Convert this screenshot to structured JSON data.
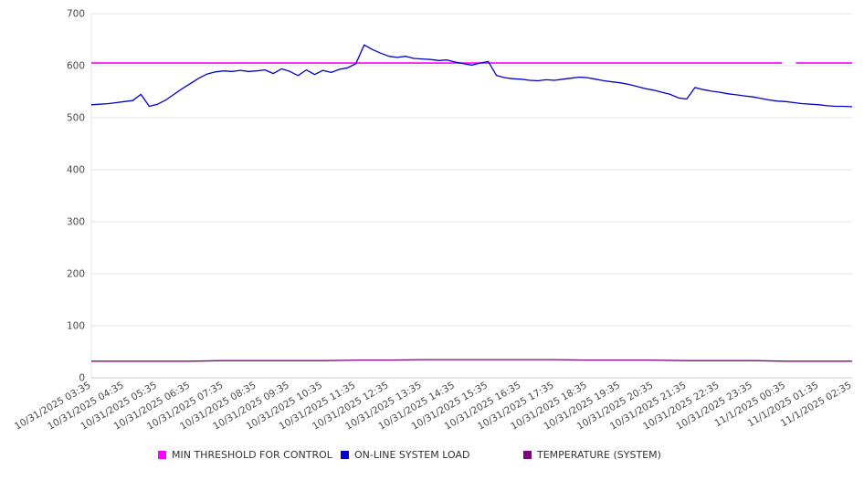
{
  "chart_data": {
    "type": "line",
    "title": "",
    "xlabel": "",
    "ylabel": "",
    "ylim": [
      0,
      700
    ],
    "y_ticks": [
      0,
      100,
      200,
      300,
      400,
      500,
      600,
      700
    ],
    "grid": true,
    "legend_position": "bottom",
    "x_labels": [
      "10/31/2025 03:35",
      "10/31/2025 04:35",
      "10/31/2025 05:35",
      "10/31/2025 06:35",
      "10/31/2025 07:35",
      "10/31/2025 08:35",
      "10/31/2025 09:35",
      "10/31/2025 10:35",
      "10/31/2025 11:35",
      "10/31/2025 12:35",
      "10/31/2025 13:35",
      "10/31/2025 14:35",
      "10/31/2025 15:35",
      "10/31/2025 16:35",
      "10/31/2025 17:35",
      "10/31/2025 18:35",
      "10/31/2025 19:35",
      "10/31/2025 20:35",
      "10/31/2025 21:35",
      "10/31/2025 22:35",
      "10/31/2025 23:35",
      "11/1/2025 00:35",
      "11/1/2025 01:35",
      "11/1/2025 02:35"
    ],
    "series": [
      {
        "name": "MIN THRESHOLD FOR CONTROL",
        "color": "#ff00ff",
        "segments": [
          {
            "x0": 0.0,
            "x1": 0.908,
            "value": 605
          },
          {
            "x0": 0.926,
            "x1": 1.0,
            "value": 605
          }
        ]
      },
      {
        "name": "ON-LINE SYSTEM LOAD",
        "color": "#0000cd",
        "values": [
          525,
          526,
          527,
          529,
          531,
          533,
          545,
          522,
          526,
          534,
          545,
          556,
          566,
          576,
          584,
          588,
          590,
          589,
          591,
          589,
          590,
          592,
          585,
          594,
          589,
          581,
          592,
          583,
          591,
          587,
          593,
          596,
          604,
          640,
          631,
          624,
          618,
          616,
          618,
          614,
          613,
          612,
          610,
          611,
          607,
          604,
          601,
          605,
          608,
          581,
          577,
          575,
          574,
          572,
          571,
          573,
          572,
          574,
          576,
          578,
          577,
          574,
          571,
          569,
          567,
          564,
          560,
          556,
          553,
          549,
          545,
          538,
          536,
          558,
          554,
          551,
          549,
          546,
          544,
          542,
          540,
          537,
          534,
          532,
          531,
          529,
          527,
          526,
          525,
          523,
          522,
          522,
          521
        ]
      },
      {
        "name": "TEMPERATURE (SYSTEM)",
        "color": "#800080",
        "values": [
          32,
          32,
          32,
          32,
          33,
          33,
          33,
          33,
          34,
          34,
          35,
          35,
          35,
          35,
          35,
          34,
          34,
          34,
          33,
          33,
          33,
          32,
          32,
          32
        ]
      }
    ]
  },
  "legend": {
    "items": [
      {
        "label": "MIN THRESHOLD FOR CONTROL"
      },
      {
        "label": "ON-LINE SYSTEM LOAD"
      },
      {
        "label": "TEMPERATURE (SYSTEM)"
      }
    ]
  }
}
